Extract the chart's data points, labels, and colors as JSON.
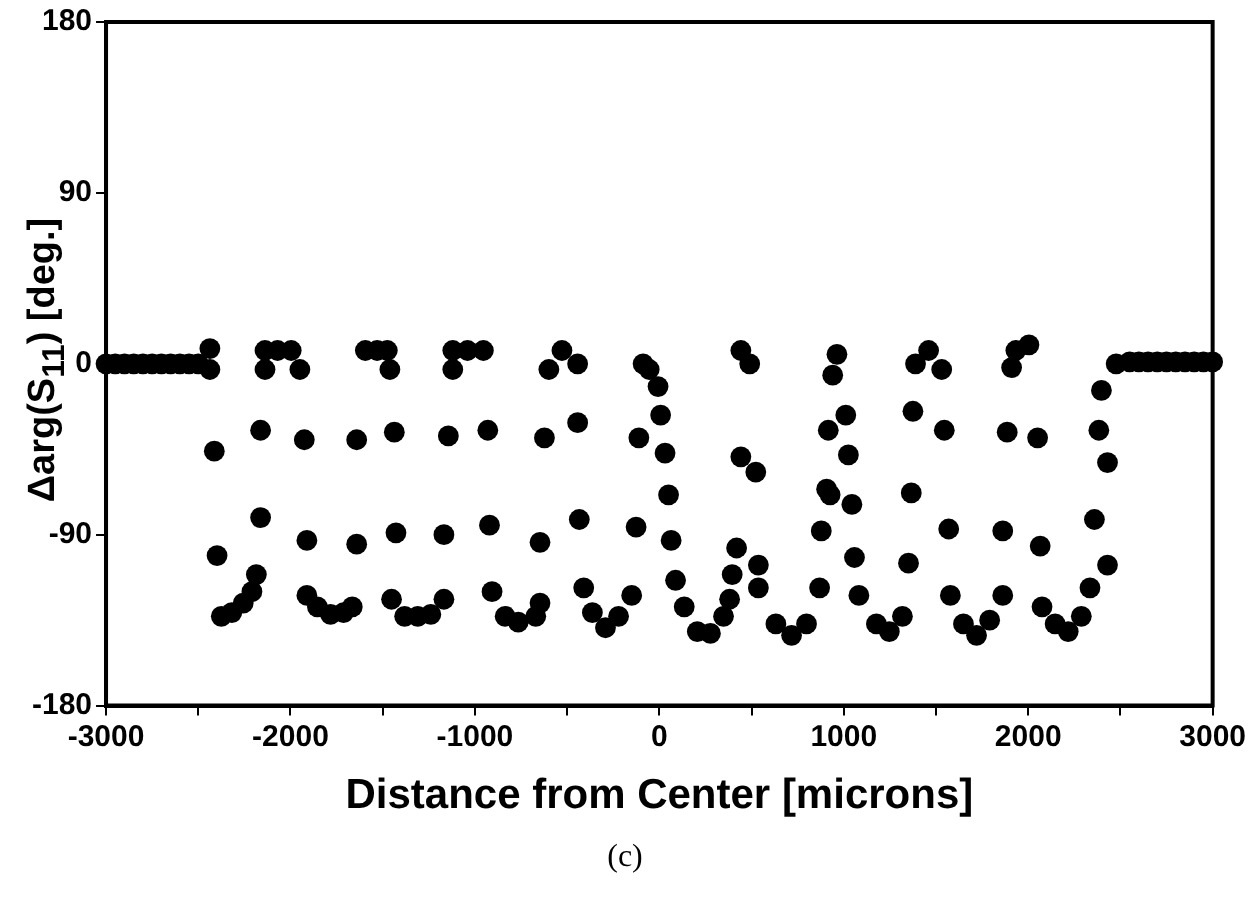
{
  "chart_data": {
    "type": "scatter",
    "xlabel": "Distance from Center [microns]",
    "ylabel": "Δarg(S$_{11}$) [deg.]",
    "annotations": [
      "(c)"
    ],
    "xlim": [
      -3000,
      3000
    ],
    "ylim": [
      -180,
      180
    ],
    "xticks": [
      -3000,
      {
        "value": -2500,
        "label": null
      },
      -2000,
      {
        "value": -1500,
        "label": null
      },
      -1000,
      {
        "value": -500,
        "label": null
      },
      0,
      {
        "value": 500,
        "label": null
      },
      1000,
      {
        "value": 1500,
        "label": null
      },
      2000,
      {
        "value": 2500,
        "label": null
      },
      3000
    ],
    "yticks": [
      -180,
      90,
      -90,
      0,
      180
    ],
    "grid": false,
    "legend": false,
    "marker": "circle",
    "series": [
      {
        "color": "#000000",
        "x": [
          -3000,
          -2950,
          -2900,
          -2850,
          -2800,
          -2750,
          -2700,
          -2650,
          -2600,
          -2550,
          -2500,
          -2437,
          -2437,
          -2413,
          -2398,
          -2375,
          -2318,
          -2256,
          -2209,
          -2185,
          -2162,
          -2162,
          -2138,
          -2138,
          -2070,
          -1996,
          -1949,
          -1925,
          -1911,
          -1911,
          -1854,
          -1783,
          -1712,
          -1665,
          -1641,
          -1641,
          -1594,
          -1530,
          -1475,
          -1461,
          -1437,
          -1428,
          -1452,
          -1381,
          -1310,
          -1239,
          -1168,
          -1168,
          -1144,
          -1120,
          -1120,
          -1040,
          -954,
          -930,
          -921,
          -907,
          -836,
          -765,
          -670,
          -647,
          -647,
          -623,
          -599,
          -528,
          -443,
          -443,
          -434,
          -410,
          -363,
          -292,
          -221,
          -150,
          -126,
          -111,
          -88,
          -55,
          -7,
          7,
          31,
          50,
          64,
          88,
          135,
          206,
          277,
          348,
          381,
          395,
          419,
          442,
          490,
          442,
          523,
          537,
          537,
          632,
          717,
          798,
          869,
          878,
          907,
          926,
          916,
          940,
          963,
          1011,
          1025,
          1044,
          1058,
          1082,
          1177,
          1247,
          1318,
          1351,
          1366,
          1375,
          1389,
          1460,
          1531,
          1545,
          1569,
          1578,
          1649,
          1720,
          1791,
          1862,
          1862,
          1886,
          1910,
          1933,
          2004,
          2051,
          2065,
          2075,
          2146,
          2217,
          2288,
          2335,
          2359,
          2383,
          2397,
          2430,
          2430,
          2477,
          2550,
          2600,
          2650,
          2700,
          2750,
          2800,
          2850,
          2900,
          2950,
          3000
        ],
        "values": [
          0,
          0,
          0,
          0,
          0,
          0,
          0,
          0,
          0,
          0,
          0,
          8,
          -3,
          -46,
          -101,
          -133,
          -131,
          -126,
          -120,
          -111,
          -81,
          -35,
          7,
          -3,
          7,
          7,
          -3,
          -40,
          -93,
          -122,
          -128,
          -132,
          -131,
          -128,
          -95,
          -40,
          7,
          7,
          7,
          -3,
          -36,
          -89,
          -124,
          -133,
          -133,
          -132,
          -124,
          -90,
          -38,
          7,
          -3,
          7,
          7,
          -35,
          -85,
          -120,
          -133,
          -136,
          -133,
          -126,
          -94,
          -39,
          -3,
          7,
          0,
          -31,
          -82,
          -118,
          -131,
          -139,
          -133,
          -122,
          -86,
          -39,
          0,
          -3,
          -12,
          -27,
          -47,
          -69,
          -93,
          -114,
          -128,
          -141,
          -142,
          -133,
          -124,
          -111,
          -97,
          7,
          0,
          -49,
          -57,
          -106,
          -118,
          -137,
          -143,
          -137,
          -118,
          -88,
          -66,
          -69,
          -35,
          -6,
          5,
          -27,
          -48,
          -74,
          -102,
          -122,
          -137,
          -141,
          -133,
          -105,
          -68,
          -25,
          0,
          7,
          -3,
          -35,
          -87,
          -122,
          -137,
          -143,
          -135,
          -122,
          -88,
          -36,
          -2,
          7,
          10,
          -39,
          -96,
          -128,
          -137,
          -141,
          -133,
          -118,
          -82,
          -35,
          -14,
          -106,
          -52,
          0,
          1,
          1,
          1,
          1,
          1,
          1,
          1,
          1,
          1,
          1
        ]
      }
    ]
  }
}
